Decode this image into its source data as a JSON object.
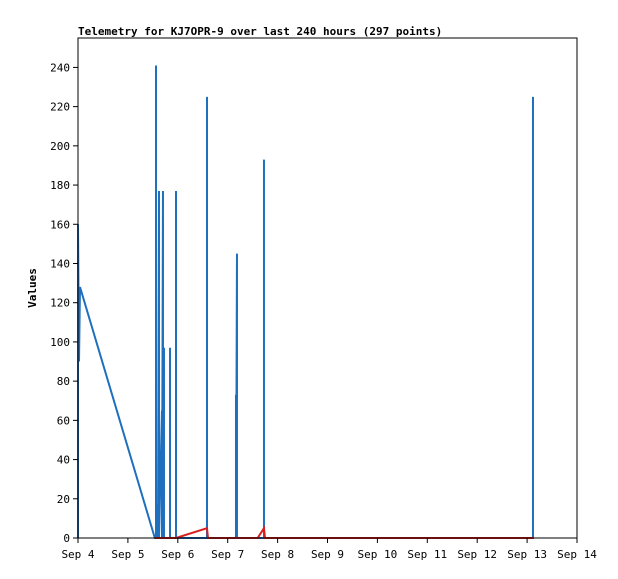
{
  "chart_data": {
    "type": "line",
    "title": "Telemetry for KJ7OPR-9 over last 240 hours (297 points)",
    "y_label": "Values",
    "xlim": [
      4,
      14
    ],
    "xticks": [
      {
        "value": 4,
        "label": "Sep 4"
      },
      {
        "value": 5,
        "label": "Sep 5"
      },
      {
        "value": 6,
        "label": "Sep 6"
      },
      {
        "value": 7,
        "label": "Sep 7"
      },
      {
        "value": 8,
        "label": "Sep 8"
      },
      {
        "value": 9,
        "label": "Sep 9"
      },
      {
        "value": 10,
        "label": "Sep 10"
      },
      {
        "value": 11,
        "label": "Sep 11"
      },
      {
        "value": 12,
        "label": "Sep 12"
      },
      {
        "value": 13,
        "label": "Sep 13"
      },
      {
        "value": 14,
        "label": "Sep 14"
      }
    ],
    "ylim": [
      0,
      255
    ],
    "yticks": [
      0,
      20,
      40,
      60,
      80,
      100,
      120,
      140,
      160,
      180,
      200,
      220,
      240
    ],
    "series": [
      {
        "color": "#1f6fbf",
        "x": [
          4.0,
          4.0,
          4.02,
          4.04,
          5.54,
          5.563,
          5.563,
          5.563,
          5.603,
          5.603,
          5.623,
          5.623,
          5.683,
          5.683,
          5.703,
          5.703,
          5.723,
          5.723,
          5.844,
          5.844,
          5.844,
          5.964,
          5.964,
          5.964,
          6.585,
          6.585,
          6.585,
          7.166,
          7.166,
          7.166,
          7.186,
          7.186,
          7.727,
          7.727,
          7.727,
          13.118,
          13.118,
          13.118
        ],
        "values": [
          0,
          160,
          90,
          128,
          0,
          0,
          241,
          0,
          17,
          0,
          177,
          0,
          65,
          0,
          177,
          0,
          97,
          0,
          0,
          97,
          0,
          0,
          177,
          0,
          0,
          225,
          0,
          0,
          73,
          0,
          145,
          0,
          0,
          193,
          0,
          0,
          225,
          0
        ]
      },
      {
        "color": "#d62020",
        "x": [
          5.54,
          5.964,
          6.585,
          6.605,
          7.6,
          7.727,
          7.747,
          13.118
        ],
        "values": [
          0,
          0,
          5,
          0,
          0,
          5,
          0,
          0
        ]
      }
    ]
  }
}
